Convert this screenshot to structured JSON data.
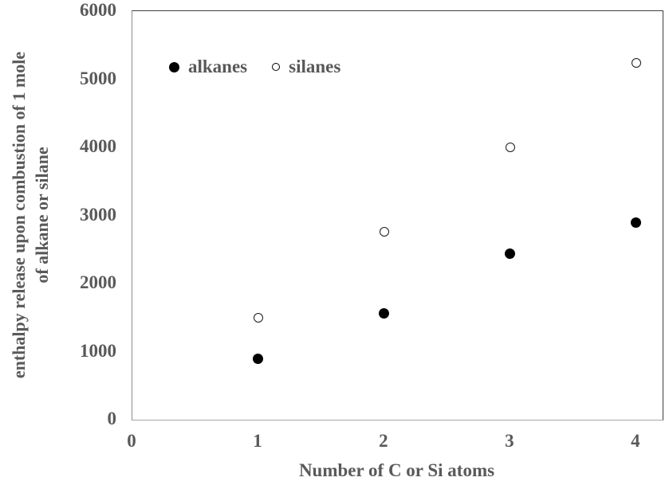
{
  "chart_data": {
    "type": "scatter",
    "title": "",
    "xlabel": "Number of C or Si atoms",
    "ylabel": "enthalpy release upon combustion of 1 mole of alkane or silane",
    "ylabel_lines": [
      "enthalpy release upon combustion of 1 mole",
      "of alkane or silane"
    ],
    "xlim": [
      0,
      4.21
    ],
    "ylim": [
      0,
      6000
    ],
    "x_ticks": [
      0,
      1,
      2,
      3,
      4
    ],
    "y_ticks": [
      0,
      1000,
      2000,
      3000,
      4000,
      5000,
      6000
    ],
    "grid": false,
    "legend_position": "inside-top-left",
    "categories": [
      1,
      2,
      3,
      4
    ],
    "series": [
      {
        "name": "alkanes",
        "marker": "filled-circle",
        "color": "#000000",
        "x": [
          1,
          2,
          3,
          4
        ],
        "values": [
          890,
          1560,
          2440,
          2900
        ]
      },
      {
        "name": "silanes",
        "marker": "open-circle",
        "color": "#000000",
        "x": [
          1,
          2,
          3,
          4
        ],
        "values": [
          1500,
          2760,
          4000,
          5240
        ]
      }
    ]
  },
  "colors": {
    "text": "#595959",
    "plot_border_dark": "#3f3f3f",
    "plot_border_light": "#a6a6a6",
    "marker": "#000000",
    "background": "#ffffff"
  }
}
